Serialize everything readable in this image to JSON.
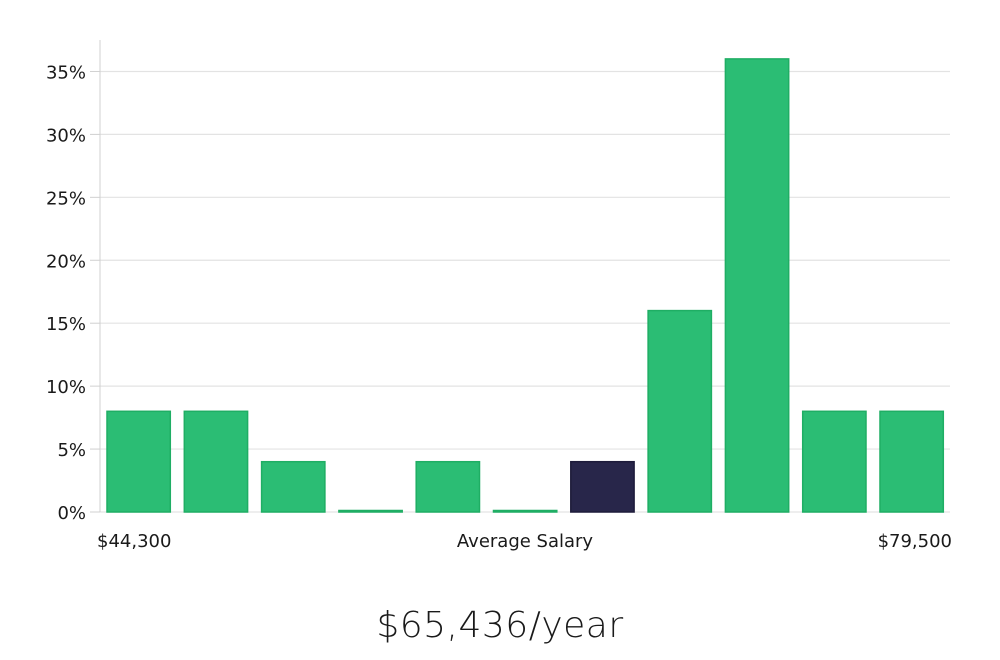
{
  "chart_data": {
    "type": "bar",
    "categories": [
      "",
      "",
      "",
      "",
      "",
      "",
      "",
      "",
      "",
      "",
      ""
    ],
    "values": [
      8,
      8,
      4,
      0,
      4,
      0,
      4,
      16,
      36,
      8,
      8
    ],
    "highlight_index": 6,
    "yticks": [
      "0%",
      "5%",
      "10%",
      "15%",
      "20%",
      "25%",
      "30%",
      "35%"
    ],
    "ytick_values": [
      0,
      5,
      10,
      15,
      20,
      25,
      30,
      35
    ],
    "ylim": [
      0,
      37.5
    ],
    "grid": true,
    "x_min_label": "$44,300",
    "x_center_label": "Average Salary",
    "x_max_label": "$79,500",
    "colors": {
      "bar": "#2bbd74",
      "bar_stroke": "#1fae64",
      "highlight": "#28264a",
      "grid": "#e3e3e3",
      "axis": "#d0d0d0"
    }
  },
  "salary": "$65,436/year"
}
